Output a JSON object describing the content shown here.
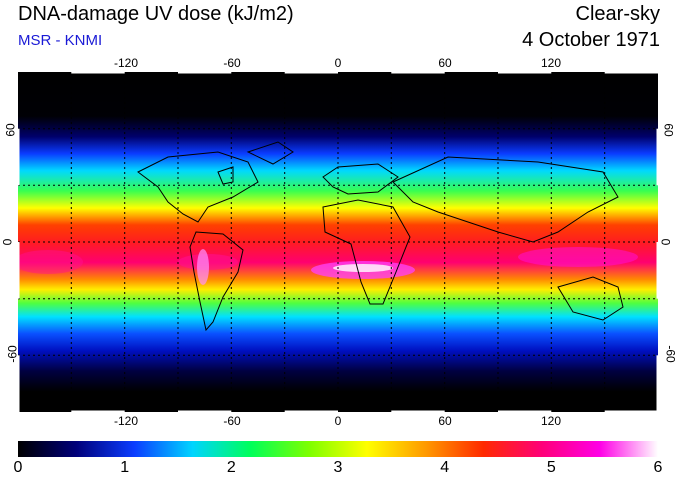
{
  "header": {
    "title": "DNA-damage UV dose (kJ/m2)",
    "subtitle": "MSR - KNMI",
    "sky_condition": "Clear-sky",
    "date": "4 October 1971"
  },
  "map": {
    "projection": "equirectangular",
    "lon_range": [
      -180,
      180
    ],
    "lat_range": [
      -90,
      90
    ],
    "lon_ticks": [
      "-120",
      "-60",
      "0",
      "60",
      "120"
    ],
    "lat_ticks_left": [
      "60",
      "0",
      "-60"
    ],
    "lat_ticks_right": [
      "60",
      "0",
      "-60"
    ],
    "grid_color": "#000000",
    "background": "#000000"
  },
  "colorbar": {
    "min": 0,
    "max": 6,
    "tick_labels": [
      "0",
      "1",
      "2",
      "3",
      "4",
      "5",
      "6"
    ],
    "colors": [
      "#000000",
      "#00007a",
      "#0b3dff",
      "#00d4ff",
      "#00ff5a",
      "#7dff00",
      "#ffff00",
      "#ff9a00",
      "#ff2a00",
      "#ff0078",
      "#ff00e6",
      "#ffffff"
    ]
  }
}
